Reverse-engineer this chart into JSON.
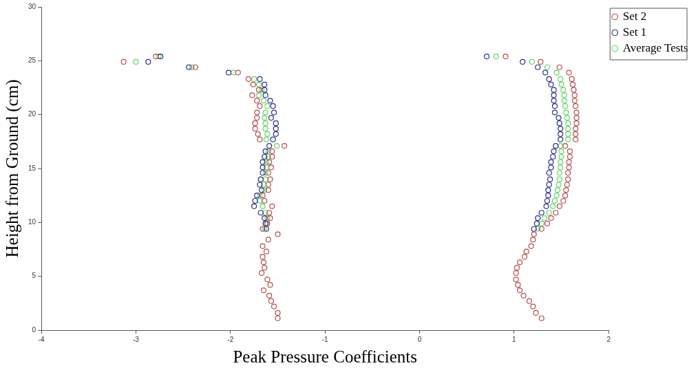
{
  "chart_data": {
    "type": "scatter",
    "xlabel": "Peak Pressure Coefficients",
    "ylabel": "Height from Ground (cm)",
    "xlim": [
      -4,
      2
    ],
    "xticks": [
      -4,
      -3,
      -2,
      -1,
      0,
      1,
      2
    ],
    "ylim": [
      0,
      30
    ],
    "yticks": [
      0,
      5,
      10,
      15,
      20,
      25,
      30
    ],
    "grid": false,
    "legend": "top right",
    "marker": "circle",
    "series": [
      {
        "name": "Set 2",
        "color": "#b5504f",
        "x": [
          -2.79,
          -3.13,
          -2.37,
          -1.92,
          -1.81,
          -1.76,
          -1.7,
          -1.77,
          -1.72,
          -1.69,
          -1.72,
          -1.72,
          -1.74,
          -1.74,
          -1.71,
          -1.69,
          -1.43,
          -1.56,
          -1.56,
          -1.59,
          -1.57,
          -1.6,
          -1.58,
          -1.6,
          -1.6,
          -1.66,
          -1.64,
          -1.56,
          -1.59,
          -1.58,
          -1.61,
          -1.66,
          -1.5,
          -1.6,
          -1.66,
          -1.62,
          -1.66,
          -1.65,
          -1.64,
          -1.67,
          -1.61,
          -1.58,
          -1.65,
          -1.59,
          -1.57,
          -1.54,
          -1.5,
          -1.5,
          0.91,
          1.28,
          1.48,
          1.58,
          1.61,
          1.62,
          1.63,
          1.64,
          1.64,
          1.65,
          1.66,
          1.66,
          1.66,
          1.65,
          1.65,
          1.65,
          1.54,
          1.59,
          1.59,
          1.58,
          1.58,
          1.57,
          1.57,
          1.56,
          1.55,
          1.54,
          1.52,
          1.48,
          1.44,
          1.39,
          1.35,
          1.29,
          1.21,
          1.2,
          1.18,
          1.13,
          1.11,
          1.06,
          1.03,
          1.02,
          1.02,
          1.04,
          1.06,
          1.1,
          1.16,
          1.2,
          1.23,
          1.29
        ],
        "values": [
          25.4,
          24.9,
          24.4,
          23.9,
          23.3,
          22.8,
          22.3,
          21.8,
          21.3,
          20.8,
          20.2,
          19.7,
          19.2,
          18.7,
          18.2,
          17.7,
          17.1,
          16.6,
          16.1,
          15.6,
          15.1,
          14.6,
          14.0,
          13.5,
          13.0,
          12.5,
          12.0,
          11.5,
          10.9,
          10.4,
          9.9,
          9.4,
          8.9,
          8.4,
          7.8,
          7.3,
          6.8,
          6.3,
          5.8,
          5.3,
          4.7,
          4.2,
          3.7,
          3.2,
          2.7,
          2.2,
          1.6,
          1.1,
          25.4,
          24.9,
          24.4,
          23.9,
          23.3,
          22.8,
          22.3,
          21.8,
          21.3,
          20.8,
          20.2,
          19.7,
          19.2,
          18.7,
          18.2,
          17.7,
          17.1,
          16.6,
          16.1,
          15.6,
          15.1,
          14.6,
          14.0,
          13.5,
          13.0,
          12.5,
          12.0,
          11.5,
          10.9,
          10.4,
          9.9,
          9.4,
          8.9,
          8.4,
          7.8,
          7.3,
          6.8,
          6.3,
          5.8,
          5.3,
          4.7,
          4.2,
          3.7,
          3.2,
          2.7,
          2.2,
          1.6,
          1.1
        ]
      },
      {
        "name": "Set 1",
        "color": "#2f2f8c",
        "x": [
          -2.74,
          -2.87,
          -2.44,
          -2.02,
          -1.69,
          -1.64,
          -1.64,
          -1.63,
          -1.58,
          -1.55,
          -1.54,
          -1.57,
          -1.52,
          -1.52,
          -1.52,
          -1.55,
          -1.59,
          -1.63,
          -1.64,
          -1.66,
          -1.66,
          -1.66,
          -1.68,
          -1.69,
          -1.67,
          -1.72,
          -1.74,
          -1.75,
          -1.68,
          -1.64,
          -1.63,
          -1.62,
          0.71,
          1.09,
          1.25,
          1.33,
          1.37,
          1.39,
          1.42,
          1.42,
          1.42,
          1.43,
          1.43,
          1.47,
          1.48,
          1.49,
          1.49,
          1.49,
          1.44,
          1.42,
          1.41,
          1.39,
          1.39,
          1.37,
          1.38,
          1.37,
          1.36,
          1.36,
          1.35,
          1.34,
          1.29,
          1.25,
          1.24,
          1.21
        ],
        "values": [
          25.4,
          24.9,
          24.4,
          23.9,
          23.3,
          22.8,
          22.3,
          21.8,
          21.3,
          20.8,
          20.2,
          19.7,
          19.2,
          18.7,
          18.2,
          17.7,
          17.1,
          16.6,
          16.1,
          15.6,
          15.1,
          14.6,
          14.0,
          13.5,
          13.0,
          12.5,
          12.0,
          11.5,
          10.9,
          10.4,
          9.9,
          9.4,
          25.4,
          24.9,
          24.4,
          23.9,
          23.3,
          22.8,
          22.3,
          21.8,
          21.3,
          20.8,
          20.2,
          19.7,
          19.2,
          18.7,
          18.2,
          17.7,
          17.1,
          16.6,
          16.1,
          15.6,
          15.1,
          14.6,
          14.0,
          13.5,
          13.0,
          12.5,
          12.0,
          11.5,
          10.9,
          10.4,
          9.9,
          9.4
        ]
      },
      {
        "name": "Average Tests",
        "color": "#66d466",
        "x": [
          -2.76,
          -3.0,
          -2.41,
          -1.97,
          -1.75,
          -1.7,
          -1.67,
          -1.7,
          -1.65,
          -1.61,
          -1.63,
          -1.64,
          -1.63,
          -1.63,
          -1.61,
          -1.62,
          -1.51,
          -1.6,
          -1.6,
          -1.62,
          -1.62,
          -1.63,
          -1.63,
          -1.65,
          -1.64,
          -1.69,
          -1.69,
          -1.66,
          -1.63,
          -1.61,
          -1.62,
          -1.64,
          0.81,
          1.19,
          1.35,
          1.45,
          1.49,
          1.5,
          1.52,
          1.53,
          1.53,
          1.54,
          1.55,
          1.56,
          1.57,
          1.57,
          1.57,
          1.57,
          1.49,
          1.5,
          1.5,
          1.49,
          1.49,
          1.48,
          1.48,
          1.47,
          1.46,
          1.45,
          1.43,
          1.41,
          1.37,
          1.32,
          1.29,
          1.25
        ],
        "values": [
          25.4,
          24.9,
          24.4,
          23.9,
          23.3,
          22.8,
          22.3,
          21.8,
          21.3,
          20.8,
          20.2,
          19.7,
          19.2,
          18.7,
          18.2,
          17.7,
          17.1,
          16.6,
          16.1,
          15.6,
          15.1,
          14.6,
          14.0,
          13.5,
          13.0,
          12.5,
          12.0,
          11.5,
          10.9,
          10.4,
          9.9,
          9.4,
          25.4,
          24.9,
          24.4,
          23.9,
          23.3,
          22.8,
          22.3,
          21.8,
          21.3,
          20.8,
          20.2,
          19.7,
          19.2,
          18.7,
          18.2,
          17.7,
          17.1,
          16.6,
          16.1,
          15.6,
          15.1,
          14.6,
          14.0,
          13.5,
          13.0,
          12.5,
          12.0,
          11.5,
          10.9,
          10.4,
          9.9,
          9.4
        ]
      }
    ]
  }
}
